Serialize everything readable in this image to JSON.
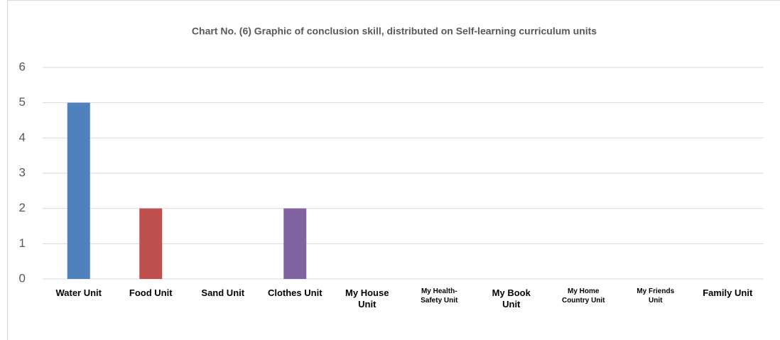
{
  "chart_data": {
    "type": "bar",
    "title": "Chart No. (6) Graphic of conclusion skill, distributed on Self-learning curriculum units",
    "categories": [
      "Water Unit",
      "Food Unit",
      "Sand Unit",
      "Clothes Unit",
      "My House Unit",
      "My Health-Safety Unit",
      "My Book Unit",
      "My Home Country Unit",
      "My Friends Unit",
      "Family Unit"
    ],
    "values": [
      5,
      2,
      0,
      2,
      0,
      0,
      0,
      0,
      0,
      0
    ],
    "colors": [
      "#4f81bd",
      "#c0504d",
      "#9bbb59",
      "#8064a2",
      "#4bacc6",
      "#f79646",
      "#2c4d75",
      "#772c2a",
      "#5f7530",
      "#4d3b62"
    ],
    "ylim": [
      0,
      6
    ],
    "yticks": [
      0,
      1,
      2,
      3,
      4,
      5,
      6
    ],
    "grid": true
  }
}
